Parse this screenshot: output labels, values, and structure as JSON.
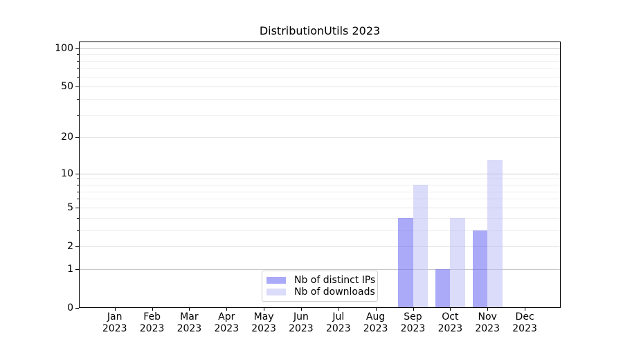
{
  "chart_data": {
    "type": "bar",
    "title": "DistributionUtils 2023",
    "categories": [
      "Jan",
      "Feb",
      "Mar",
      "Apr",
      "May",
      "Jun",
      "Jul",
      "Aug",
      "Sep",
      "Oct",
      "Nov",
      "Dec"
    ],
    "year_label": "2023",
    "series": [
      {
        "name": "Nb of distinct IPs",
        "color": "rgba(101,101,242,0.55)",
        "values": [
          0,
          0,
          0,
          0,
          0,
          0,
          0,
          0,
          4,
          1,
          3,
          0
        ]
      },
      {
        "name": "Nb of downloads",
        "color": "rgba(183,183,245,0.5)",
        "values": [
          0,
          0,
          0,
          0,
          0,
          0,
          0,
          0,
          8,
          4,
          13,
          0
        ]
      }
    ],
    "xlabel": "",
    "ylabel": "",
    "ylim": [
      0,
      114
    ],
    "scale": "log-like (position proportional to log10(1+v))",
    "grid": true,
    "legend_position": "lower center",
    "y_ticks": [
      {
        "v": 0,
        "label": "0"
      },
      {
        "v": 1,
        "label": "1",
        "emphasized": true
      },
      {
        "v": 2,
        "label": "2"
      },
      {
        "v": 5,
        "label": "5"
      },
      {
        "v": 10,
        "label": "10",
        "emphasized": true
      },
      {
        "v": 20,
        "label": "20"
      },
      {
        "v": 50,
        "label": "50"
      },
      {
        "v": 100,
        "label": "100",
        "emphasized": true
      }
    ],
    "y_minor_gridlines": [
      3,
      4,
      6,
      7,
      8,
      9,
      30,
      40,
      60,
      70,
      80,
      90
    ],
    "colors": {
      "grid_emphasized": "#c8c8c8",
      "grid_labeled": "#e4e4e4",
      "grid_minor": "#ededed",
      "axis": "#000000",
      "legend_border": "#cccccc"
    }
  }
}
